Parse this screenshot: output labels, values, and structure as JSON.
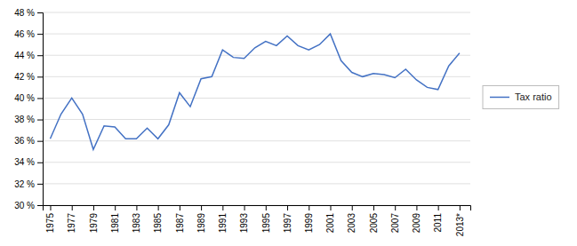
{
  "chart_data": {
    "type": "line",
    "x": [
      1975,
      1976,
      1977,
      1978,
      1979,
      1980,
      1981,
      1982,
      1983,
      1984,
      1985,
      1986,
      1987,
      1988,
      1989,
      1990,
      1991,
      1992,
      1993,
      1994,
      1995,
      1996,
      1997,
      1998,
      1999,
      2000,
      2001,
      2002,
      2003,
      2004,
      2005,
      2006,
      2007,
      2008,
      2009,
      2010,
      2011,
      2012,
      2013
    ],
    "series": [
      {
        "name": "Tax ratio",
        "color": "#4472c4",
        "values": [
          36.2,
          38.5,
          40.0,
          38.5,
          35.2,
          37.4,
          37.3,
          36.2,
          36.2,
          37.2,
          36.2,
          37.5,
          40.5,
          39.2,
          41.8,
          42.0,
          44.5,
          43.8,
          43.7,
          44.7,
          45.3,
          44.9,
          45.8,
          44.9,
          44.5,
          45.0,
          46.0,
          43.5,
          42.4,
          42.0,
          42.3,
          42.2,
          41.9,
          42.7,
          41.7,
          41.0,
          40.8,
          43.0,
          44.2
        ]
      }
    ],
    "xlim": [
      1974.3,
      2014.0
    ],
    "xticks": [
      1975,
      1977,
      1979,
      1981,
      1983,
      1985,
      1987,
      1989,
      1991,
      1993,
      1995,
      1997,
      1999,
      2001,
      2003,
      2005,
      2007,
      2009,
      2011,
      {
        "value": 2013,
        "label": "2013*"
      }
    ],
    "ylim": [
      30,
      48
    ],
    "yticks": [
      {
        "value": 30,
        "label": "30 %"
      },
      {
        "value": 32,
        "label": "32 %"
      },
      {
        "value": 34,
        "label": "34 %"
      },
      {
        "value": 36,
        "label": "36 %"
      },
      {
        "value": 38,
        "label": "38 %"
      },
      {
        "value": 40,
        "label": "40 %"
      },
      {
        "value": 42,
        "label": "42 %"
      },
      {
        "value": 44,
        "label": "44 %"
      },
      {
        "value": 46,
        "label": "46 %"
      },
      {
        "value": 48,
        "label": "48 %"
      }
    ],
    "grid": true,
    "legend": "right"
  }
}
